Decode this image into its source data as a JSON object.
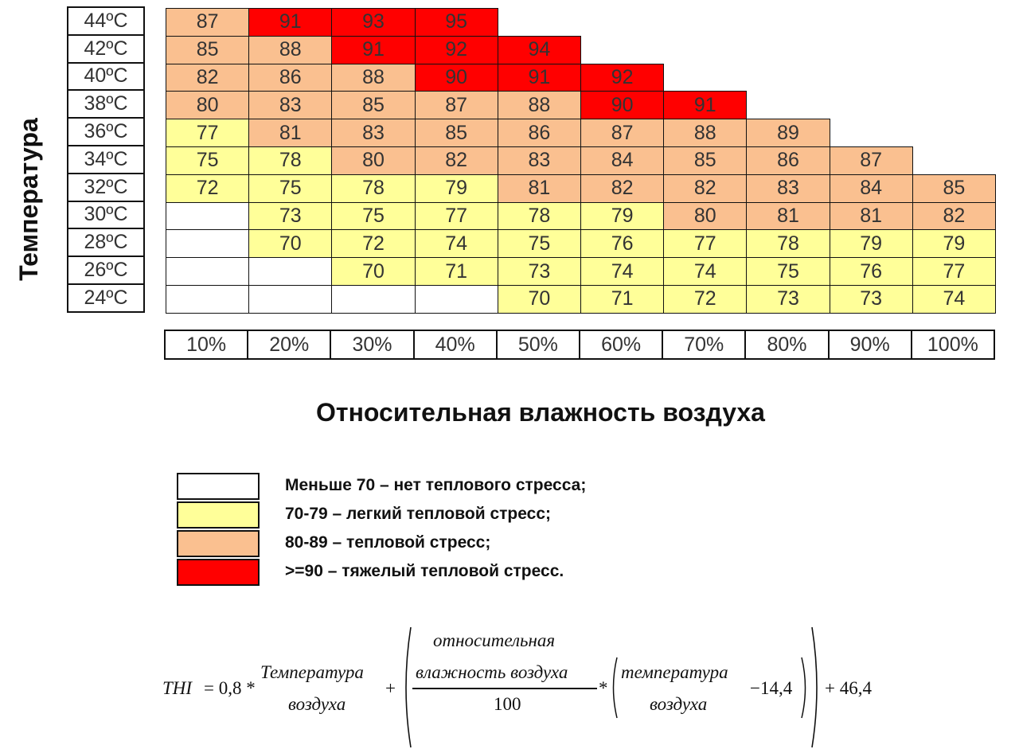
{
  "chart_data": {
    "type": "heatmap",
    "ylabel": "Температура",
    "xlabel": "Относительная влажность воздуха",
    "rows": [
      "44ºC",
      "42ºC",
      "40ºC",
      "38ºC",
      "36ºC",
      "34ºC",
      "32ºC",
      "30ºC",
      "28ºC",
      "26ºC",
      "24ºC"
    ],
    "columns": [
      "10%",
      "20%",
      "30%",
      "40%",
      "50%",
      "60%",
      "70%",
      "80%",
      "90%",
      "100%"
    ],
    "values": [
      [
        87,
        91,
        93,
        95,
        null,
        null,
        null,
        null,
        null,
        null
      ],
      [
        85,
        88,
        91,
        92,
        94,
        null,
        null,
        null,
        null,
        null
      ],
      [
        82,
        86,
        88,
        90,
        91,
        92,
        null,
        null,
        null,
        null
      ],
      [
        80,
        83,
        85,
        87,
        88,
        90,
        91,
        null,
        null,
        null
      ],
      [
        77,
        81,
        83,
        85,
        86,
        87,
        88,
        89,
        null,
        null
      ],
      [
        75,
        78,
        80,
        82,
        83,
        84,
        85,
        86,
        87,
        null
      ],
      [
        72,
        75,
        78,
        79,
        81,
        82,
        82,
        83,
        84,
        85
      ],
      [
        null,
        73,
        75,
        77,
        78,
        79,
        80,
        81,
        81,
        82
      ],
      [
        null,
        70,
        72,
        74,
        75,
        76,
        77,
        78,
        79,
        79
      ],
      [
        null,
        null,
        70,
        71,
        73,
        74,
        74,
        75,
        76,
        77
      ],
      [
        null,
        null,
        null,
        null,
        70,
        71,
        72,
        73,
        73,
        74
      ]
    ],
    "blank_cells": [
      [
        7,
        0
      ],
      [
        8,
        0
      ],
      [
        9,
        0
      ],
      [
        9,
        1
      ],
      [
        10,
        0
      ],
      [
        10,
        1
      ],
      [
        10,
        2
      ],
      [
        10,
        3
      ]
    ],
    "colors": {
      "none": "#ffffff",
      "mild": "#ffff99",
      "stress": "#fac090",
      "severe": "#ff0000"
    }
  },
  "legend": [
    {
      "color": "#ffffff",
      "label": "Меньше 70 – нет теплового стресса;"
    },
    {
      "color": "#ffff99",
      "label": "70-79 – легкий тепловой стресс;"
    },
    {
      "color": "#fac090",
      "label": "80-89 – тепловой стресс;"
    },
    {
      "color": "#ff0000",
      "label": ">=90 – тяжелый тепловой стресс."
    }
  ],
  "formula": {
    "lhs": "THI",
    "eq_const": "= 0,8 *",
    "t1_top": "Температура",
    "t1_bottom": "воздуха",
    "plus1": "+",
    "h_top1": "относительная",
    "h_top2": "влажность воздуха",
    "h_den": "100",
    "times": "*",
    "t2_top": "температура",
    "t2_bottom": "воздуха",
    "minus": "−14,4",
    "tail": "+ 46,4"
  }
}
